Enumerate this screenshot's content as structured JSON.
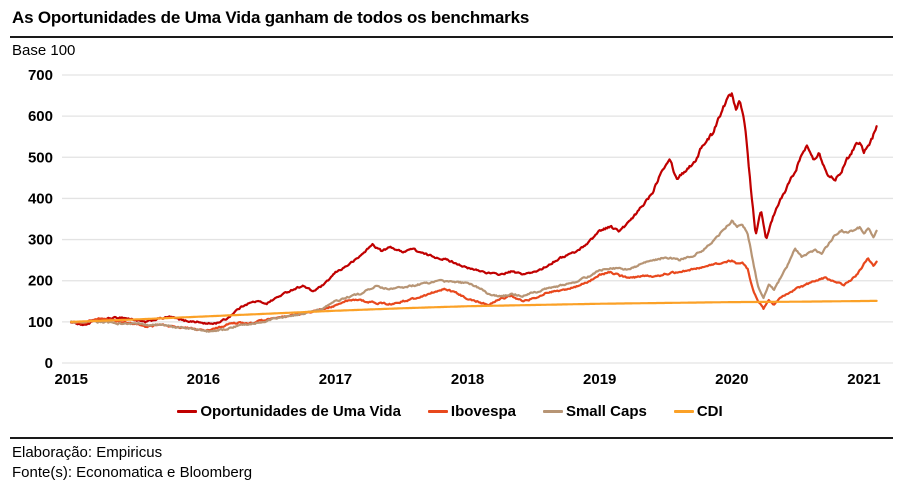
{
  "header": {
    "title": "As Oportunidades de Uma Vida ganham de todos os benchmarks",
    "subtitle": "Base 100"
  },
  "footer": {
    "elaboracao": "Elaboração: Empiricus",
    "fonte": "Fonte(s): Economatica e Bloomberg"
  },
  "colors": {
    "oportunidades": "#C00000",
    "ibovespa": "#E8481D",
    "small_caps": "#B79575",
    "cdi": "#FBA127",
    "gridline": "#E3E3E3",
    "text": "#000000",
    "rule": "#1a1a1a"
  },
  "chart_data": {
    "type": "line",
    "title": "As Oportunidades de Uma Vida ganham de todos os benchmarks",
    "ylabel": "Base 100",
    "xlabel": "",
    "grid": "horizontal",
    "legend_position": "bottom",
    "x_ticks": [
      2015,
      2016,
      2017,
      2018,
      2019,
      2020,
      2021
    ],
    "y_ticks": [
      0,
      100,
      200,
      300,
      400,
      500,
      600,
      700
    ],
    "ylim": [
      0,
      700
    ],
    "xlim": [
      2014.93,
      2021.22
    ],
    "series": [
      {
        "name": "Oportunidades de Uma Vida",
        "color": "#C00000",
        "volatility": 0.013,
        "points": [
          [
            2015.0,
            100
          ],
          [
            2015.05,
            96
          ],
          [
            2015.1,
            92
          ],
          [
            2015.18,
            103
          ],
          [
            2015.28,
            108
          ],
          [
            2015.38,
            111
          ],
          [
            2015.48,
            105
          ],
          [
            2015.56,
            99
          ],
          [
            2015.65,
            107
          ],
          [
            2015.75,
            112
          ],
          [
            2015.85,
            103
          ],
          [
            2015.95,
            100
          ],
          [
            2016.03,
            95
          ],
          [
            2016.1,
            97
          ],
          [
            2016.18,
            108
          ],
          [
            2016.25,
            128
          ],
          [
            2016.32,
            143
          ],
          [
            2016.4,
            150
          ],
          [
            2016.48,
            145
          ],
          [
            2016.55,
            158
          ],
          [
            2016.65,
            175
          ],
          [
            2016.75,
            188
          ],
          [
            2016.83,
            174
          ],
          [
            2016.92,
            192
          ],
          [
            2017.0,
            220
          ],
          [
            2017.08,
            235
          ],
          [
            2017.17,
            255
          ],
          [
            2017.28,
            288
          ],
          [
            2017.35,
            272
          ],
          [
            2017.42,
            282
          ],
          [
            2017.5,
            270
          ],
          [
            2017.58,
            278
          ],
          [
            2017.67,
            265
          ],
          [
            2017.75,
            258
          ],
          [
            2017.85,
            250
          ],
          [
            2017.92,
            242
          ],
          [
            2018.0,
            230
          ],
          [
            2018.08,
            225
          ],
          [
            2018.17,
            218
          ],
          [
            2018.25,
            215
          ],
          [
            2018.33,
            222
          ],
          [
            2018.42,
            216
          ],
          [
            2018.5,
            220
          ],
          [
            2018.58,
            232
          ],
          [
            2018.67,
            250
          ],
          [
            2018.75,
            262
          ],
          [
            2018.83,
            272
          ],
          [
            2018.92,
            295
          ],
          [
            2019.0,
            322
          ],
          [
            2019.08,
            332
          ],
          [
            2019.15,
            320
          ],
          [
            2019.25,
            352
          ],
          [
            2019.33,
            385
          ],
          [
            2019.4,
            415
          ],
          [
            2019.47,
            470
          ],
          [
            2019.53,
            500
          ],
          [
            2019.58,
            448
          ],
          [
            2019.65,
            468
          ],
          [
            2019.72,
            490
          ],
          [
            2019.78,
            530
          ],
          [
            2019.85,
            555
          ],
          [
            2019.9,
            598
          ],
          [
            2019.96,
            638
          ],
          [
            2020.0,
            655
          ],
          [
            2020.03,
            618
          ],
          [
            2020.06,
            645
          ],
          [
            2020.1,
            580
          ],
          [
            2020.14,
            440
          ],
          [
            2020.18,
            312
          ],
          [
            2020.22,
            372
          ],
          [
            2020.26,
            303
          ],
          [
            2020.31,
            352
          ],
          [
            2020.37,
            398
          ],
          [
            2020.42,
            428
          ],
          [
            2020.48,
            468
          ],
          [
            2020.53,
            505
          ],
          [
            2020.57,
            528
          ],
          [
            2020.62,
            498
          ],
          [
            2020.66,
            512
          ],
          [
            2020.7,
            478
          ],
          [
            2020.74,
            452
          ],
          [
            2020.78,
            446
          ],
          [
            2020.83,
            468
          ],
          [
            2020.88,
            498
          ],
          [
            2020.93,
            528
          ],
          [
            2020.97,
            540
          ],
          [
            2021.0,
            515
          ],
          [
            2021.04,
            530
          ],
          [
            2021.07,
            552
          ],
          [
            2021.1,
            575
          ]
        ]
      },
      {
        "name": "Ibovespa",
        "color": "#E8481D",
        "volatility": 0.012,
        "points": [
          [
            2015.0,
            100
          ],
          [
            2015.07,
            96
          ],
          [
            2015.15,
            104
          ],
          [
            2015.24,
            108
          ],
          [
            2015.32,
            103
          ],
          [
            2015.4,
            98
          ],
          [
            2015.5,
            94
          ],
          [
            2015.58,
            88
          ],
          [
            2015.67,
            93
          ],
          [
            2015.76,
            89
          ],
          [
            2015.85,
            86
          ],
          [
            2015.94,
            82
          ],
          [
            2016.02,
            78
          ],
          [
            2016.1,
            84
          ],
          [
            2016.18,
            93
          ],
          [
            2016.26,
            98
          ],
          [
            2016.34,
            95
          ],
          [
            2016.42,
            101
          ],
          [
            2016.5,
            106
          ],
          [
            2016.6,
            111
          ],
          [
            2016.7,
            117
          ],
          [
            2016.8,
            123
          ],
          [
            2016.9,
            131
          ],
          [
            2017.0,
            140
          ],
          [
            2017.08,
            150
          ],
          [
            2017.16,
            154
          ],
          [
            2017.25,
            149
          ],
          [
            2017.33,
            145
          ],
          [
            2017.42,
            143
          ],
          [
            2017.5,
            149
          ],
          [
            2017.58,
            155
          ],
          [
            2017.67,
            164
          ],
          [
            2017.75,
            173
          ],
          [
            2017.83,
            179
          ],
          [
            2017.92,
            169
          ],
          [
            2018.0,
            157
          ],
          [
            2018.08,
            149
          ],
          [
            2018.16,
            141
          ],
          [
            2018.25,
            156
          ],
          [
            2018.33,
            163
          ],
          [
            2018.42,
            150
          ],
          [
            2018.5,
            157
          ],
          [
            2018.58,
            168
          ],
          [
            2018.67,
            174
          ],
          [
            2018.75,
            179
          ],
          [
            2018.83,
            186
          ],
          [
            2018.92,
            199
          ],
          [
            2019.0,
            214
          ],
          [
            2019.08,
            221
          ],
          [
            2019.16,
            211
          ],
          [
            2019.25,
            207
          ],
          [
            2019.33,
            213
          ],
          [
            2019.42,
            209
          ],
          [
            2019.5,
            217
          ],
          [
            2019.58,
            221
          ],
          [
            2019.67,
            226
          ],
          [
            2019.75,
            231
          ],
          [
            2019.83,
            237
          ],
          [
            2019.92,
            243
          ],
          [
            2020.0,
            249
          ],
          [
            2020.04,
            241
          ],
          [
            2020.08,
            246
          ],
          [
            2020.12,
            228
          ],
          [
            2020.16,
            178
          ],
          [
            2020.2,
            148
          ],
          [
            2020.24,
            132
          ],
          [
            2020.28,
            152
          ],
          [
            2020.32,
            142
          ],
          [
            2020.37,
            158
          ],
          [
            2020.43,
            170
          ],
          [
            2020.5,
            182
          ],
          [
            2020.57,
            192
          ],
          [
            2020.64,
            200
          ],
          [
            2020.7,
            207
          ],
          [
            2020.75,
            202
          ],
          [
            2020.8,
            196
          ],
          [
            2020.85,
            190
          ],
          [
            2020.9,
            201
          ],
          [
            2020.95,
            216
          ],
          [
            2021.0,
            240
          ],
          [
            2021.03,
            256
          ],
          [
            2021.07,
            236
          ],
          [
            2021.1,
            246
          ]
        ]
      },
      {
        "name": "Small Caps",
        "color": "#B79575",
        "volatility": 0.012,
        "points": [
          [
            2015.0,
            100
          ],
          [
            2015.08,
            97
          ],
          [
            2015.16,
            101
          ],
          [
            2015.25,
            99
          ],
          [
            2015.33,
            97
          ],
          [
            2015.42,
            95
          ],
          [
            2015.5,
            96
          ],
          [
            2015.58,
            91
          ],
          [
            2015.67,
            93
          ],
          [
            2015.76,
            89
          ],
          [
            2015.85,
            85
          ],
          [
            2015.94,
            82
          ],
          [
            2016.02,
            78
          ],
          [
            2016.08,
            76
          ],
          [
            2016.15,
            81
          ],
          [
            2016.24,
            88
          ],
          [
            2016.33,
            94
          ],
          [
            2016.42,
            99
          ],
          [
            2016.5,
            104
          ],
          [
            2016.6,
            111
          ],
          [
            2016.7,
            117
          ],
          [
            2016.8,
            123
          ],
          [
            2016.9,
            132
          ],
          [
            2017.0,
            150
          ],
          [
            2017.1,
            160
          ],
          [
            2017.2,
            170
          ],
          [
            2017.3,
            186
          ],
          [
            2017.4,
            179
          ],
          [
            2017.5,
            183
          ],
          [
            2017.6,
            189
          ],
          [
            2017.7,
            195
          ],
          [
            2017.8,
            199
          ],
          [
            2017.9,
            197
          ],
          [
            2018.0,
            194
          ],
          [
            2018.08,
            184
          ],
          [
            2018.16,
            168
          ],
          [
            2018.25,
            161
          ],
          [
            2018.33,
            168
          ],
          [
            2018.42,
            163
          ],
          [
            2018.5,
            171
          ],
          [
            2018.58,
            179
          ],
          [
            2018.67,
            186
          ],
          [
            2018.75,
            193
          ],
          [
            2018.83,
            199
          ],
          [
            2018.92,
            211
          ],
          [
            2019.0,
            226
          ],
          [
            2019.1,
            231
          ],
          [
            2019.2,
            227
          ],
          [
            2019.3,
            238
          ],
          [
            2019.4,
            250
          ],
          [
            2019.5,
            256
          ],
          [
            2019.6,
            251
          ],
          [
            2019.7,
            260
          ],
          [
            2019.8,
            278
          ],
          [
            2019.88,
            302
          ],
          [
            2019.95,
            330
          ],
          [
            2020.0,
            345
          ],
          [
            2020.04,
            332
          ],
          [
            2020.08,
            338
          ],
          [
            2020.12,
            315
          ],
          [
            2020.16,
            248
          ],
          [
            2020.2,
            185
          ],
          [
            2020.24,
            156
          ],
          [
            2020.28,
            192
          ],
          [
            2020.32,
            176
          ],
          [
            2020.37,
            208
          ],
          [
            2020.43,
            242
          ],
          [
            2020.48,
            278
          ],
          [
            2020.53,
            258
          ],
          [
            2020.58,
            266
          ],
          [
            2020.63,
            274
          ],
          [
            2020.68,
            266
          ],
          [
            2020.73,
            288
          ],
          [
            2020.78,
            312
          ],
          [
            2020.83,
            322
          ],
          [
            2020.88,
            316
          ],
          [
            2020.93,
            324
          ],
          [
            2020.97,
            330
          ],
          [
            2021.0,
            318
          ],
          [
            2021.04,
            326
          ],
          [
            2021.07,
            304
          ],
          [
            2021.1,
            322
          ]
        ]
      },
      {
        "name": "CDI",
        "color": "#FBA127",
        "volatility": 0,
        "points": [
          [
            2015.0,
            100
          ],
          [
            2015.5,
            106
          ],
          [
            2016.0,
            113
          ],
          [
            2016.5,
            120
          ],
          [
            2017.0,
            127
          ],
          [
            2017.5,
            133
          ],
          [
            2018.0,
            138
          ],
          [
            2018.5,
            141
          ],
          [
            2019.0,
            144
          ],
          [
            2019.5,
            146
          ],
          [
            2020.0,
            148
          ],
          [
            2020.5,
            149
          ],
          [
            2021.1,
            151
          ]
        ]
      }
    ]
  }
}
